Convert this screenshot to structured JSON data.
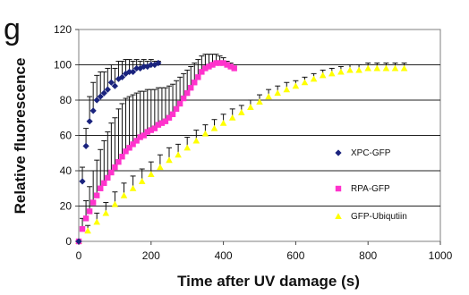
{
  "panel_label": "g",
  "chart_data": {
    "type": "scatter",
    "xlabel": "Time after UV damage (s)",
    "ylabel": "Relative fluorescence",
    "xlim": [
      0,
      1000
    ],
    "ylim": [
      0,
      120
    ],
    "xticks": [
      0,
      200,
      400,
      600,
      800,
      1000
    ],
    "yticks": [
      0,
      20,
      40,
      60,
      80,
      100,
      120
    ],
    "xtick_labels": [
      "0",
      "200",
      "400",
      "600",
      "800",
      "1000"
    ],
    "ytick_labels": [
      "0",
      "20",
      "40",
      "60",
      "80",
      "100",
      "120"
    ],
    "grid": "horizontal",
    "legend_position": "right",
    "series": [
      {
        "name": "XPC-GFP",
        "color": "#1a237e",
        "marker": "diamond",
        "x": [
          0,
          10,
          20,
          30,
          40,
          50,
          60,
          70,
          80,
          90,
          100,
          110,
          120,
          130,
          140,
          150,
          160,
          170,
          180,
          190,
          200,
          210,
          220
        ],
        "y": [
          0,
          34,
          54,
          68,
          74,
          80,
          82,
          84,
          86,
          90,
          88,
          92,
          93,
          95,
          96,
          96,
          98,
          98,
          99,
          99,
          100,
          100,
          101
        ],
        "error": [
          0,
          8,
          10,
          14,
          16,
          14,
          14,
          12,
          12,
          10,
          10,
          10,
          9,
          8,
          7,
          6,
          5,
          4,
          4,
          3,
          3,
          2,
          1
        ]
      },
      {
        "name": "RPA-GFP",
        "color": "#ff33cc",
        "marker": "square",
        "x": [
          0,
          10,
          20,
          30,
          40,
          50,
          60,
          70,
          80,
          90,
          100,
          110,
          120,
          130,
          140,
          150,
          160,
          170,
          180,
          190,
          200,
          210,
          220,
          230,
          240,
          250,
          260,
          270,
          280,
          290,
          300,
          310,
          320,
          330,
          340,
          350,
          360,
          370,
          380,
          390,
          400,
          410,
          420,
          430
        ],
        "y": [
          0,
          7,
          13,
          17,
          22,
          26,
          30,
          33,
          36,
          39,
          42,
          45,
          48,
          51,
          53,
          55,
          57,
          59,
          60,
          62,
          63,
          64,
          66,
          67,
          68,
          70,
          72,
          75,
          78,
          81,
          84,
          87,
          90,
          93,
          96,
          98,
          99,
          100,
          101,
          101,
          101,
          100,
          99,
          98
        ],
        "error": [
          0,
          6,
          10,
          14,
          18,
          20,
          22,
          24,
          26,
          28,
          28,
          30,
          30,
          30,
          29,
          28,
          27,
          26,
          25,
          24,
          23,
          22,
          21,
          20,
          19,
          18,
          17,
          16,
          15,
          14,
          13,
          12,
          11,
          10,
          9,
          8,
          7,
          6,
          5,
          4,
          3,
          2,
          2,
          1
        ]
      },
      {
        "name": "GFP-Ubiqutiin",
        "color": "#ffff00",
        "marker": "triangle",
        "x": [
          0,
          25,
          50,
          75,
          100,
          125,
          150,
          175,
          200,
          225,
          250,
          275,
          300,
          325,
          350,
          375,
          400,
          425,
          450,
          475,
          500,
          525,
          550,
          575,
          600,
          625,
          650,
          675,
          700,
          725,
          750,
          775,
          800,
          825,
          850,
          875,
          900
        ],
        "y": [
          0,
          6,
          11,
          16,
          21,
          26,
          30,
          34,
          38,
          42,
          46,
          49,
          53,
          57,
          61,
          64,
          67,
          70,
          73,
          76,
          79,
          82,
          84,
          86,
          88,
          90,
          92,
          94,
          95,
          96,
          97,
          97,
          98,
          98,
          98,
          98,
          98
        ],
        "error": [
          0,
          3,
          5,
          6,
          7,
          7,
          7,
          7,
          7,
          7,
          7,
          6,
          6,
          6,
          5,
          5,
          5,
          5,
          4,
          4,
          4,
          4,
          4,
          4,
          3,
          3,
          3,
          3,
          3,
          3,
          3,
          3,
          3,
          3,
          3,
          3,
          3
        ]
      }
    ]
  }
}
